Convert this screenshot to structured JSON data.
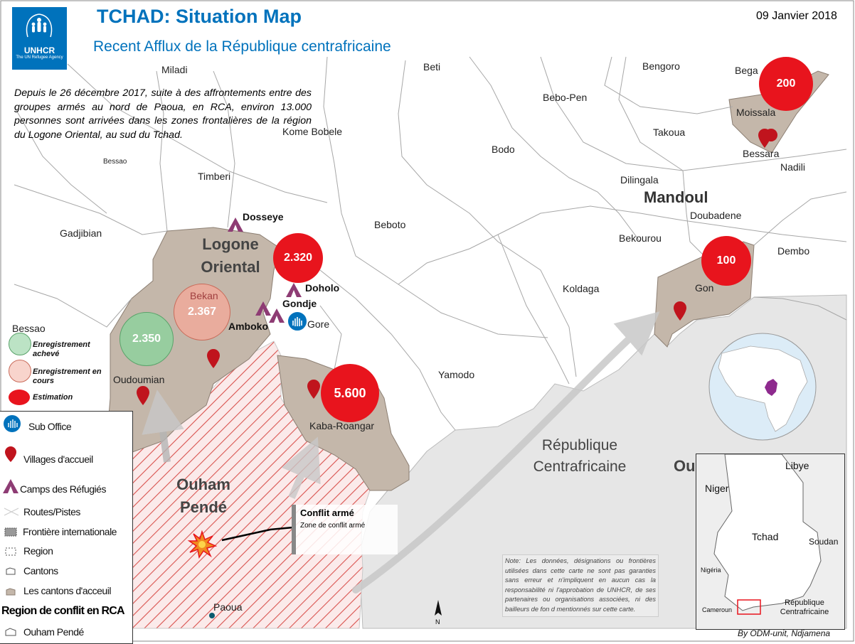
{
  "header": {
    "org_name": "UNHCR",
    "org_tagline": "The UN Refugee Agency",
    "title": "TCHAD: Situation Map",
    "subtitle": "Recent Afflux de la République centrafricaine",
    "date": "09 Janvier 2018"
  },
  "intro_text": "Depuis le 26 décembre 2017, suite à des affrontements entre des groupes armés au nord de Paoua, en RCA, environ 13.000 personnes sont arrivées dans les zones frontalières de la région du Logone Oriental, au sud du Tchad.",
  "places": {
    "miladi": "Miladi",
    "beti": "Beti",
    "bengoro": "Bengoro",
    "bega": "Bega",
    "bebo_pen": "Bebo-Pen",
    "moissala": "Moissala",
    "koule": "Kome Bobele",
    "bodo": "Bodo",
    "takoua": "Takoua",
    "bessara": "Bessara",
    "nadili": "Nadili",
    "bessao_top": "Bessao",
    "timberi": "Timberi",
    "dilingala": "Dilingala",
    "doubadene": "Doubadene",
    "dosseye": "Dosseye",
    "gadjibian": "Gadjibian",
    "beboto": "Beboto",
    "bekourou": "Bekourou",
    "dembo": "Dembo",
    "doholo": "Doholo",
    "koldaga": "Koldaga",
    "gon": "Gon",
    "bekan": "Bekan",
    "gondje": "Gondje",
    "amboko": "Amboko",
    "gore": "Gore",
    "bessao": "Bessao",
    "oudoumian": "Oudoumian",
    "yamodo": "Yamodo",
    "kaba_roangar": "Kaba-Roangar",
    "paoua": "Paoua",
    "ou": "Ou"
  },
  "regions": {
    "logone_oriental": "Logone Oriental",
    "mandoul": "Mandoul",
    "ouham_pende": "Ouham Pendé",
    "rca": "République Centrafricaine"
  },
  "figures": [
    {
      "label": "200",
      "status": "Estimation"
    },
    {
      "label": "2.320",
      "status": "Estimation"
    },
    {
      "label": "100",
      "status": "Estimation"
    },
    {
      "label": "2.367",
      "status": "Enregistrement en cours"
    },
    {
      "label": "2.350",
      "status": "Enregistrement achevé"
    },
    {
      "label": "5.600",
      "status": "Estimation"
    }
  ],
  "legend_status": {
    "done": "Enregistrement achevé",
    "ongoing": "Enregistrement en cours",
    "estimate": "Estimation"
  },
  "legend": {
    "sub_office": "Sub Office",
    "villages": "Villages d'accueil",
    "camps": "Camps des Réfugiés",
    "roads": "Routes/Pistes",
    "border": "Frontière internationale",
    "region": "Region",
    "cantons": "Cantons",
    "host_cantons": "Les cantons d'acceuil",
    "conflict_heading": "Region de conflit en RCA",
    "ouham_pende": "Ouham Pendé"
  },
  "conflict_box": {
    "heading": "Conflit armé",
    "text": "Zone de conflit armé"
  },
  "note": "Note: Les données, désignations ou frontières utilisées dans cette carte ne sont pas garanties sans erreur et n'impliquent en aucun cas la responsabilité ni l'approbation de UNHCR, de ses partenaires ou organisations associées, ni des bailleurs de fon d mentionnés sur cette carte.",
  "credit": "By ODM-unit, Ndjamena",
  "north_label": "N",
  "inset": {
    "libye": "Libye",
    "niger": "Niger",
    "tchad": "Tchad",
    "soudan": "Soudan",
    "nigeria": "Nigéria",
    "cameroun": "Cameroun",
    "rca": "République Centrafricaine"
  },
  "colors": {
    "unhcr_blue": "#0072bc",
    "host_canton": "#c4b7aa",
    "conflict_hatch": "#d9534f",
    "estimate_red": "#e8141d",
    "done_green": "#8fd19e",
    "ongoing_pink": "#f2a99a",
    "rca_grey": "#e6e6e6",
    "camp_purple": "#8e3c74"
  }
}
